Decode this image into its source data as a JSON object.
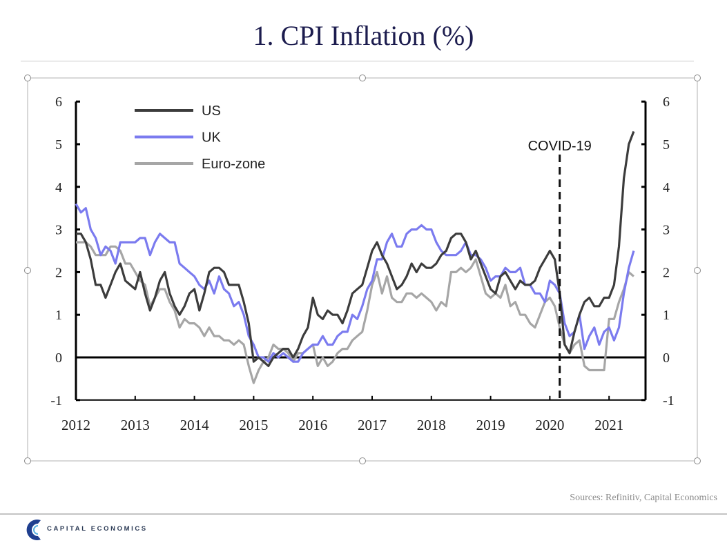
{
  "title": "1. CPI Inflation (%)",
  "sources": "Sources: Refinitiv, Capital Economics",
  "brand": "CAPITAL ECONOMICS",
  "chart_data": {
    "type": "line",
    "title": "1. CPI Inflation (%)",
    "x_start": "2012-01",
    "frequency": "monthly",
    "x_ticks": [
      "2012",
      "2013",
      "2014",
      "2015",
      "2016",
      "2017",
      "2018",
      "2019",
      "2020",
      "2021"
    ],
    "y_ticks": [
      "-1",
      "0",
      "1",
      "2",
      "3",
      "4",
      "5",
      "6"
    ],
    "ylim": [
      -1,
      6
    ],
    "xlim": [
      "2012-01",
      "2021-08"
    ],
    "grid": false,
    "legend_position": "top-left",
    "annotation": {
      "label": "COVID-19",
      "date": "2020-03",
      "style": "dashed vertical line"
    },
    "series": [
      {
        "name": "US",
        "color": "#3c3c3c",
        "values": [
          2.9,
          2.9,
          2.7,
          2.3,
          1.7,
          1.7,
          1.4,
          1.7,
          2.0,
          2.2,
          1.8,
          1.7,
          1.6,
          2.0,
          1.5,
          1.1,
          1.4,
          1.8,
          2.0,
          1.5,
          1.2,
          1.0,
          1.2,
          1.5,
          1.6,
          1.1,
          1.5,
          2.0,
          2.1,
          2.1,
          2.0,
          1.7,
          1.7,
          1.7,
          1.3,
          0.8,
          -0.1,
          0.0,
          -0.1,
          -0.2,
          0.0,
          0.1,
          0.2,
          0.2,
          0.0,
          0.2,
          0.5,
          0.7,
          1.4,
          1.0,
          0.9,
          1.1,
          1.0,
          1.0,
          0.8,
          1.1,
          1.5,
          1.6,
          1.7,
          2.1,
          2.5,
          2.7,
          2.4,
          2.2,
          1.9,
          1.6,
          1.7,
          1.9,
          2.2,
          2.0,
          2.2,
          2.1,
          2.1,
          2.2,
          2.4,
          2.5,
          2.8,
          2.9,
          2.9,
          2.7,
          2.3,
          2.5,
          2.2,
          1.9,
          1.6,
          1.5,
          1.9,
          2.0,
          1.8,
          1.6,
          1.8,
          1.7,
          1.7,
          1.8,
          2.1,
          2.3,
          2.5,
          2.3,
          1.5,
          0.3,
          0.1,
          0.6,
          1.0,
          1.3,
          1.4,
          1.2,
          1.2,
          1.4,
          1.4,
          1.7,
          2.6,
          4.2,
          5.0,
          5.3
        ]
      },
      {
        "name": "UK",
        "color": "#7b7bef",
        "values": [
          3.6,
          3.4,
          3.5,
          3.0,
          2.8,
          2.4,
          2.6,
          2.5,
          2.2,
          2.7,
          2.7,
          2.7,
          2.7,
          2.8,
          2.8,
          2.4,
          2.7,
          2.9,
          2.8,
          2.7,
          2.7,
          2.2,
          2.1,
          2.0,
          1.9,
          1.7,
          1.6,
          1.8,
          1.5,
          1.9,
          1.6,
          1.5,
          1.2,
          1.3,
          1.0,
          0.5,
          0.3,
          0.0,
          0.0,
          -0.1,
          0.1,
          0.0,
          0.1,
          0.0,
          -0.1,
          -0.1,
          0.1,
          0.2,
          0.3,
          0.3,
          0.5,
          0.3,
          0.3,
          0.5,
          0.6,
          0.6,
          1.0,
          0.9,
          1.2,
          1.6,
          1.8,
          2.3,
          2.3,
          2.7,
          2.9,
          2.6,
          2.6,
          2.9,
          3.0,
          3.0,
          3.1,
          3.0,
          3.0,
          2.7,
          2.5,
          2.4,
          2.4,
          2.4,
          2.5,
          2.7,
          2.4,
          2.4,
          2.3,
          2.1,
          1.8,
          1.9,
          1.9,
          2.1,
          2.0,
          2.0,
          2.1,
          1.7,
          1.7,
          1.5,
          1.5,
          1.3,
          1.8,
          1.7,
          1.5,
          0.8,
          0.5,
          0.6,
          1.0,
          0.2,
          0.5,
          0.7,
          0.3,
          0.6,
          0.7,
          0.4,
          0.7,
          1.5,
          2.1,
          2.5
        ]
      },
      {
        "name": "Euro-zone",
        "color": "#a6a6a6",
        "values": [
          2.7,
          2.7,
          2.7,
          2.6,
          2.4,
          2.4,
          2.4,
          2.6,
          2.6,
          2.5,
          2.2,
          2.2,
          2.0,
          1.8,
          1.7,
          1.2,
          1.4,
          1.6,
          1.6,
          1.3,
          1.1,
          0.7,
          0.9,
          0.8,
          0.8,
          0.7,
          0.5,
          0.7,
          0.5,
          0.5,
          0.4,
          0.4,
          0.3,
          0.4,
          0.3,
          -0.2,
          -0.6,
          -0.3,
          -0.1,
          0.0,
          0.3,
          0.2,
          0.2,
          0.1,
          -0.1,
          0.1,
          0.1,
          0.2,
          0.3,
          -0.2,
          0.0,
          -0.2,
          -0.1,
          0.1,
          0.2,
          0.2,
          0.4,
          0.5,
          0.6,
          1.1,
          1.7,
          2.0,
          1.5,
          1.9,
          1.4,
          1.3,
          1.3,
          1.5,
          1.5,
          1.4,
          1.5,
          1.4,
          1.3,
          1.1,
          1.3,
          1.2,
          2.0,
          2.0,
          2.1,
          2.0,
          2.1,
          2.3,
          1.9,
          1.5,
          1.4,
          1.5,
          1.4,
          1.7,
          1.2,
          1.3,
          1.0,
          1.0,
          0.8,
          0.7,
          1.0,
          1.3,
          1.4,
          1.2,
          0.7,
          0.3,
          0.1,
          0.3,
          0.4,
          -0.2,
          -0.3,
          -0.3,
          -0.3,
          -0.3,
          0.9,
          0.9,
          1.3,
          1.6,
          2.0,
          1.9
        ]
      }
    ]
  }
}
